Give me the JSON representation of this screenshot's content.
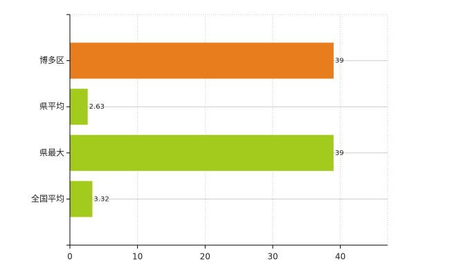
{
  "chart_data": {
    "type": "hbar",
    "categories": [
      "博多区",
      "県平均",
      "県最大",
      "全国平均"
    ],
    "values": [
      39,
      2.63,
      39,
      3.32
    ],
    "colors": [
      "#e87d1e",
      "#a2cb1d",
      "#a2cb1d",
      "#a2cb1d"
    ],
    "xlim": [
      0,
      47
    ],
    "xticks": [
      0,
      10,
      20,
      30,
      40
    ],
    "grid": true
  }
}
